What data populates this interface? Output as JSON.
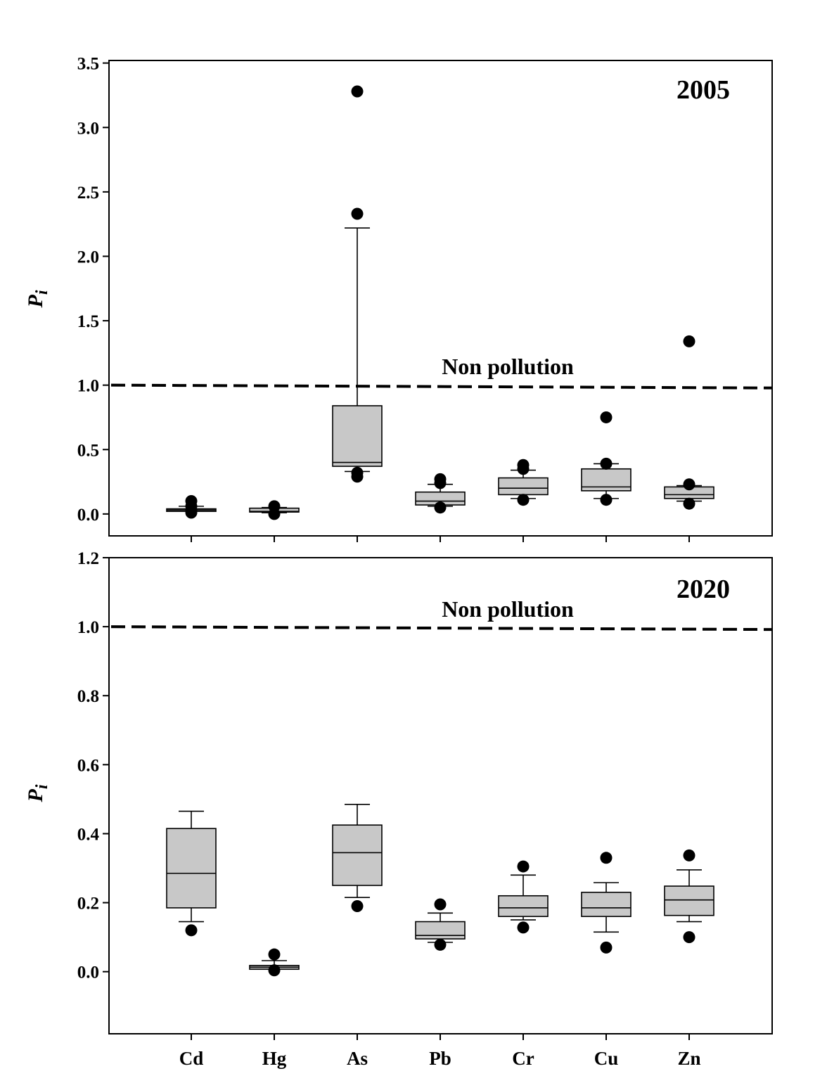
{
  "chart_data": [
    {
      "type": "box",
      "panel": "top",
      "title": "2005",
      "ylabel": "P",
      "ylabel_subscript": "i",
      "ylim": [
        -0.17,
        3.52
      ],
      "yticks": [
        0.0,
        0.5,
        1.0,
        1.5,
        2.0,
        2.5,
        3.0,
        3.5
      ],
      "ytick_labels": [
        "0.0",
        "0.5",
        "1.0",
        "1.5",
        "2.0",
        "2.5",
        "3.0",
        "3.5"
      ],
      "categories": [
        "Cd",
        "Hg",
        "As",
        "Pb",
        "Cr",
        "Cu",
        "Zn"
      ],
      "reference_line": {
        "value": 1.0,
        "label": "Non pollution",
        "style": "dashed"
      },
      "boxes": [
        {
          "category": "Cd",
          "whisker_low": 0.02,
          "q1": 0.02,
          "median": 0.03,
          "q3": 0.04,
          "whisker_high": 0.06,
          "outliers": [
            0.1,
            0.06,
            0.03,
            0.01
          ]
        },
        {
          "category": "Hg",
          "whisker_low": 0.01,
          "q1": 0.015,
          "median": 0.02,
          "q3": 0.045,
          "whisker_high": 0.05,
          "outliers": [
            0.06,
            0.0
          ]
        },
        {
          "category": "As",
          "whisker_low": 0.33,
          "q1": 0.37,
          "median": 0.4,
          "q3": 0.84,
          "whisker_high": 2.22,
          "outliers": [
            3.28,
            2.33,
            0.32,
            0.29
          ]
        },
        {
          "category": "Pb",
          "whisker_low": 0.06,
          "q1": 0.07,
          "median": 0.1,
          "q3": 0.17,
          "whisker_high": 0.23,
          "outliers": [
            0.27,
            0.24,
            0.05
          ]
        },
        {
          "category": "Cr",
          "whisker_low": 0.12,
          "q1": 0.15,
          "median": 0.2,
          "q3": 0.28,
          "whisker_high": 0.34,
          "outliers": [
            0.38,
            0.35,
            0.11
          ]
        },
        {
          "category": "Cu",
          "whisker_low": 0.12,
          "q1": 0.18,
          "median": 0.21,
          "q3": 0.35,
          "whisker_high": 0.39,
          "outliers": [
            0.75,
            0.39,
            0.11
          ]
        },
        {
          "category": "Zn",
          "whisker_low": 0.1,
          "q1": 0.12,
          "median": 0.15,
          "q3": 0.21,
          "whisker_high": 0.22,
          "outliers": [
            1.34,
            0.23,
            0.08
          ]
        }
      ]
    },
    {
      "type": "box",
      "panel": "bottom",
      "title": "2020",
      "ylabel": "P",
      "ylabel_subscript": "i",
      "ylim": [
        -0.18,
        1.2
      ],
      "yticks": [
        0.0,
        0.2,
        0.4,
        0.6,
        0.8,
        1.0,
        1.2
      ],
      "ytick_labels": [
        "0.0",
        "0.2",
        "0.4",
        "0.6",
        "0.8",
        "1.0",
        "1.2"
      ],
      "categories": [
        "Cd",
        "Hg",
        "As",
        "Pb",
        "Cr",
        "Cu",
        "Zn"
      ],
      "category_labels": [
        "Cd",
        "Hg",
        "As",
        "Pb",
        "Cr",
        "Cu",
        "Zn"
      ],
      "reference_line": {
        "value": 1.0,
        "label": "Non pollution",
        "style": "dashed"
      },
      "boxes": [
        {
          "category": "Cd",
          "whisker_low": 0.145,
          "q1": 0.185,
          "median": 0.285,
          "q3": 0.415,
          "whisker_high": 0.465,
          "outliers": [
            0.12
          ]
        },
        {
          "category": "Hg",
          "whisker_low": 0.007,
          "q1": 0.007,
          "median": 0.013,
          "q3": 0.018,
          "whisker_high": 0.032,
          "outliers": [
            0.05,
            0.004
          ]
        },
        {
          "category": "As",
          "whisker_low": 0.215,
          "q1": 0.25,
          "median": 0.345,
          "q3": 0.425,
          "whisker_high": 0.485,
          "outliers": [
            0.19
          ]
        },
        {
          "category": "Pb",
          "whisker_low": 0.085,
          "q1": 0.095,
          "median": 0.105,
          "q3": 0.145,
          "whisker_high": 0.17,
          "outliers": [
            0.195,
            0.078
          ]
        },
        {
          "category": "Cr",
          "whisker_low": 0.15,
          "q1": 0.16,
          "median": 0.185,
          "q3": 0.22,
          "whisker_high": 0.28,
          "outliers": [
            0.305,
            0.128
          ]
        },
        {
          "category": "Cu",
          "whisker_low": 0.115,
          "q1": 0.16,
          "median": 0.185,
          "q3": 0.23,
          "whisker_high": 0.258,
          "outliers": [
            0.33,
            0.07
          ]
        },
        {
          "category": "Zn",
          "whisker_low": 0.145,
          "q1": 0.163,
          "median": 0.208,
          "q3": 0.248,
          "whisker_high": 0.295,
          "outliers": [
            0.337,
            0.1
          ]
        }
      ]
    }
  ],
  "colors": {
    "box_fill": "#c8c8c8",
    "ink": "#000000",
    "background": "#ffffff"
  }
}
